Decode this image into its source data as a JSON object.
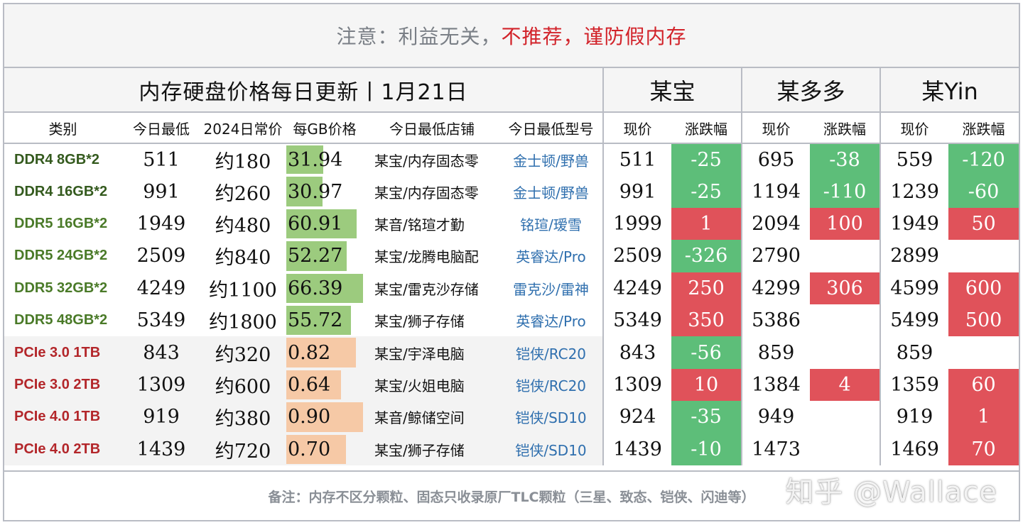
{
  "notice": {
    "gray_text": "注意：利益无关，",
    "red_text": "不推荐，谨防假内存"
  },
  "header": {
    "title": "内存硬盘价格每日更新丨1月21日",
    "stores": [
      "某宝",
      "某多多",
      "某Yin"
    ]
  },
  "columns": {
    "category": "类别",
    "today_low": "今日最低",
    "usual_2024": "2024日常价",
    "per_gb": "每GB价格",
    "low_shop": "今日最低店铺",
    "low_model": "今日最低型号",
    "price": "现价",
    "change": "涨跌幅"
  },
  "colors": {
    "ram_bar": "#9ccb7e",
    "ssd_bar": "#f6c9a6",
    "up": "#e0525a",
    "down": "#5dbe79",
    "model_text": "#2f6fae"
  },
  "rows": [
    {
      "cat": "DDR4 8GB*2",
      "type": "ram",
      "low": "511",
      "usual": "约180",
      "pergb": "31.94",
      "pergb_fill": 0.48,
      "shop": "某宝/内存固态零",
      "model": "金士顿/野兽",
      "s1_price": "511",
      "s1_chg": "-25",
      "s2_price": "695",
      "s2_chg": "-38",
      "s3_price": "559",
      "s3_chg": "-120"
    },
    {
      "cat": "DDR4 16GB*2",
      "type": "ram",
      "low": "991",
      "usual": "约260",
      "pergb": "30.97",
      "pergb_fill": 0.47,
      "shop": "某宝/内存固态零",
      "model": "金士顿/野兽",
      "s1_price": "991",
      "s1_chg": "-25",
      "s2_price": "1194",
      "s2_chg": "-110",
      "s3_price": "1239",
      "s3_chg": "-60"
    },
    {
      "cat": "DDR5 16GB*2",
      "type": "ram",
      "low": "1949",
      "usual": "约480",
      "pergb": "60.91",
      "pergb_fill": 0.92,
      "shop": "某音/铭瑄才勤",
      "model": "铭瑄/瑷雪",
      "s1_price": "1999",
      "s1_chg": "1",
      "s2_price": "2094",
      "s2_chg": "100",
      "s3_price": "1949",
      "s3_chg": "50"
    },
    {
      "cat": "DDR5 24GB*2",
      "type": "ram",
      "low": "2509",
      "usual": "约840",
      "pergb": "52.27",
      "pergb_fill": 0.79,
      "shop": "某宝/龙腾电脑配",
      "model": "英睿达/Pro",
      "s1_price": "2509",
      "s1_chg": "-326",
      "s2_price": "2790",
      "s2_chg": "",
      "s3_price": "2899",
      "s3_chg": ""
    },
    {
      "cat": "DDR5 32GB*2",
      "type": "ram",
      "low": "4249",
      "usual": "约1100",
      "pergb": "66.39",
      "pergb_fill": 1.0,
      "shop": "某宝/雷克沙存储",
      "model": "雷克沙/雷神",
      "s1_price": "4249",
      "s1_chg": "250",
      "s2_price": "4299",
      "s2_chg": "306",
      "s3_price": "4599",
      "s3_chg": "600"
    },
    {
      "cat": "DDR5 48GB*2",
      "type": "ram",
      "low": "5349",
      "usual": "约1800",
      "pergb": "55.72",
      "pergb_fill": 0.84,
      "shop": "某宝/狮子存储",
      "model": "英睿达/Pro",
      "s1_price": "5349",
      "s1_chg": "350",
      "s2_price": "5386",
      "s2_chg": "",
      "s3_price": "5499",
      "s3_chg": "500"
    },
    {
      "cat": "PCIe 3.0 1TB",
      "type": "ssd",
      "low": "843",
      "usual": "约320",
      "pergb": "0.82",
      "pergb_fill": 0.91,
      "shop": "某宝/宇泽电脑",
      "model": "铠侠/RC20",
      "s1_price": "843",
      "s1_chg": "-56",
      "s2_price": "859",
      "s2_chg": "",
      "s3_price": "859",
      "s3_chg": ""
    },
    {
      "cat": "PCIe 3.0 2TB",
      "type": "ssd",
      "low": "1309",
      "usual": "约600",
      "pergb": "0.64",
      "pergb_fill": 0.71,
      "shop": "某宝/火姐电脑",
      "model": "铠侠/RC20",
      "s1_price": "1309",
      "s1_chg": "10",
      "s2_price": "1384",
      "s2_chg": "4",
      "s3_price": "1359",
      "s3_chg": "60"
    },
    {
      "cat": "PCIe 4.0 1TB",
      "type": "ssd",
      "low": "919",
      "usual": "约380",
      "pergb": "0.90",
      "pergb_fill": 1.0,
      "shop": "某音/鲸储空间",
      "model": "铠侠/SD10",
      "s1_price": "924",
      "s1_chg": "-35",
      "s2_price": "949",
      "s2_chg": "",
      "s3_price": "919",
      "s3_chg": "1"
    },
    {
      "cat": "PCIe 4.0 2TB",
      "type": "ssd",
      "low": "1439",
      "usual": "约720",
      "pergb": "0.70",
      "pergb_fill": 0.78,
      "shop": "某宝/狮子存储",
      "model": "铠侠/SD10",
      "s1_price": "1439",
      "s1_chg": "-10",
      "s2_price": "1473",
      "s2_chg": "",
      "s3_price": "1469",
      "s3_chg": "70"
    }
  ],
  "footnote": "备注：内存不区分颗粒、固态只收录原厂TLC颗粒（三星、致态、铠侠、闪迪等）",
  "watermark": "知乎 @Wallace"
}
